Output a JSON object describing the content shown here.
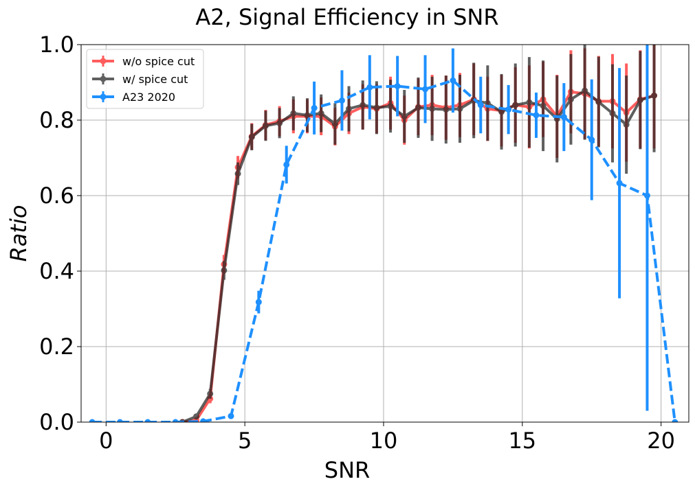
{
  "chart_data": {
    "type": "line",
    "title": "A2, Signal Efficiency in SNR",
    "xlabel": "SNR",
    "ylabel": "Ratio",
    "xlim": [
      -0.9,
      21.0
    ],
    "ylim": [
      0.0,
      1.0
    ],
    "xticks": [
      0,
      5,
      10,
      15,
      20
    ],
    "yticks": [
      0.0,
      0.2,
      0.4,
      0.6,
      0.8,
      1.0
    ],
    "grid": true,
    "legend_position": "top-left",
    "series": [
      {
        "name": "w/o spice cut",
        "color": "#ff2020",
        "linestyle": "solid",
        "points": [
          [
            2.75,
            0.0,
            0.0
          ],
          [
            3.25,
            0.005,
            0.005
          ],
          [
            3.75,
            0.062,
            0.012
          ],
          [
            4.25,
            0.418,
            0.025
          ],
          [
            4.75,
            0.675,
            0.03
          ],
          [
            5.25,
            0.757,
            0.035
          ],
          [
            5.75,
            0.787,
            0.04
          ],
          [
            6.25,
            0.797,
            0.04
          ],
          [
            6.75,
            0.81,
            0.045
          ],
          [
            7.25,
            0.81,
            0.045
          ],
          [
            7.75,
            0.81,
            0.05
          ],
          [
            8.25,
            0.783,
            0.05
          ],
          [
            8.75,
            0.818,
            0.055
          ],
          [
            9.25,
            0.835,
            0.06
          ],
          [
            9.75,
            0.83,
            0.065
          ],
          [
            10.25,
            0.845,
            0.07
          ],
          [
            10.75,
            0.8,
            0.065
          ],
          [
            11.25,
            0.835,
            0.075
          ],
          [
            11.75,
            0.84,
            0.08
          ],
          [
            12.25,
            0.833,
            0.085
          ],
          [
            12.75,
            0.84,
            0.085
          ],
          [
            13.25,
            0.855,
            0.095
          ],
          [
            13.75,
            0.83,
            0.085
          ],
          [
            14.25,
            0.825,
            0.095
          ],
          [
            14.75,
            0.84,
            0.1
          ],
          [
            15.25,
            0.835,
            0.11
          ],
          [
            15.75,
            0.855,
            0.1
          ],
          [
            16.25,
            0.81,
            0.11
          ],
          [
            16.75,
            0.875,
            0.11
          ],
          [
            17.25,
            0.87,
            0.12
          ],
          [
            17.75,
            0.85,
            0.12
          ],
          [
            18.25,
            0.85,
            0.125
          ],
          [
            18.75,
            0.82,
            0.13
          ],
          [
            19.25,
            0.855,
            0.13
          ],
          [
            19.75,
            0.865,
            0.14
          ]
        ]
      },
      {
        "name": "w/ spice cut",
        "color": "#222222",
        "linestyle": "solid",
        "points": [
          [
            2.75,
            0.0,
            0.0
          ],
          [
            3.25,
            0.015,
            0.006
          ],
          [
            3.75,
            0.075,
            0.013
          ],
          [
            4.25,
            0.402,
            0.025
          ],
          [
            4.75,
            0.658,
            0.03
          ],
          [
            5.25,
            0.755,
            0.035
          ],
          [
            5.75,
            0.785,
            0.04
          ],
          [
            6.25,
            0.792,
            0.04
          ],
          [
            6.75,
            0.818,
            0.045
          ],
          [
            7.25,
            0.813,
            0.045
          ],
          [
            7.75,
            0.818,
            0.05
          ],
          [
            8.25,
            0.79,
            0.055
          ],
          [
            8.75,
            0.83,
            0.06
          ],
          [
            9.25,
            0.84,
            0.065
          ],
          [
            9.75,
            0.833,
            0.07
          ],
          [
            10.25,
            0.837,
            0.07
          ],
          [
            10.75,
            0.81,
            0.07
          ],
          [
            11.25,
            0.833,
            0.08
          ],
          [
            11.75,
            0.83,
            0.085
          ],
          [
            12.25,
            0.828,
            0.09
          ],
          [
            12.75,
            0.83,
            0.09
          ],
          [
            13.25,
            0.852,
            0.1
          ],
          [
            13.75,
            0.845,
            0.1
          ],
          [
            14.25,
            0.822,
            0.1
          ],
          [
            14.75,
            0.84,
            0.11
          ],
          [
            15.25,
            0.847,
            0.12
          ],
          [
            15.75,
            0.838,
            0.12
          ],
          [
            16.25,
            0.803,
            0.115
          ],
          [
            16.75,
            0.855,
            0.12
          ],
          [
            17.25,
            0.878,
            0.13
          ],
          [
            17.75,
            0.848,
            0.12
          ],
          [
            18.25,
            0.818,
            0.13
          ],
          [
            18.75,
            0.788,
            0.13
          ],
          [
            19.25,
            0.853,
            0.13
          ],
          [
            19.75,
            0.865,
            0.15
          ]
        ]
      },
      {
        "name": "A23 2020",
        "color": "#1e90ff",
        "linestyle": "dashed",
        "points": [
          [
            -0.5,
            0.0,
            0.0
          ],
          [
            0.5,
            0.0,
            0.0
          ],
          [
            1.5,
            0.0,
            0.0
          ],
          [
            2.5,
            0.0,
            0.0
          ],
          [
            3.5,
            0.002,
            0.002
          ],
          [
            4.5,
            0.016,
            0.006
          ],
          [
            5.5,
            0.318,
            0.03
          ],
          [
            6.5,
            0.682,
            0.05
          ],
          [
            7.5,
            0.832,
            0.07
          ],
          [
            8.5,
            0.852,
            0.08
          ],
          [
            9.5,
            0.887,
            0.085
          ],
          [
            10.5,
            0.89,
            0.08
          ],
          [
            11.5,
            0.882,
            0.09
          ],
          [
            12.5,
            0.905,
            0.085
          ],
          [
            13.5,
            0.84,
            0.075
          ],
          [
            14.5,
            0.828,
            0.065
          ],
          [
            15.5,
            0.813,
            0.06
          ],
          [
            16.5,
            0.808,
            0.09
          ],
          [
            17.5,
            0.748,
            0.16
          ],
          [
            18.5,
            0.633,
            0.305
          ],
          [
            19.5,
            0.6,
            0.57
          ],
          [
            20.5,
            0.0,
            0.0
          ]
        ]
      }
    ]
  }
}
